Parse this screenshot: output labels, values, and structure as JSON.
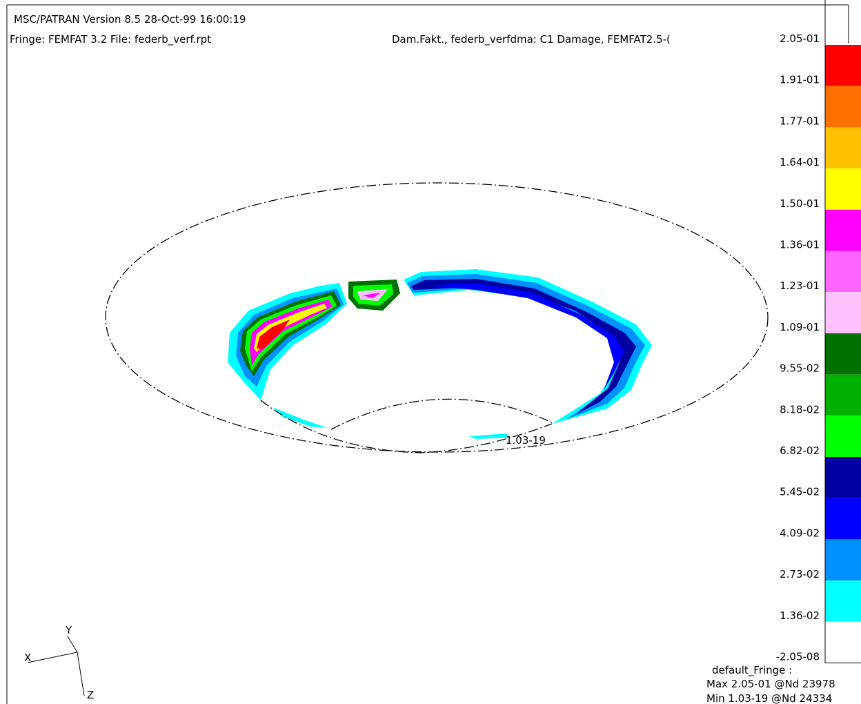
{
  "header": {
    "line1": "MSC/PATRAN Version 8.5 28-Oct-99 16:00:19",
    "line2": "Fringe: FEMFAT 3.2 File: federb_verf.rpt",
    "title": "Dam.Fakt., federb_verfdma: C1 Damage, FEMFAT2.5-("
  },
  "legend": {
    "labels": [
      "2.05-01",
      "1.91-01",
      "1.77-01",
      "1.64-01",
      "1.50-01",
      "1.36-01",
      "1.23-01",
      "1.09-01",
      "9.55-02",
      "8.18-02",
      "6.82-02",
      "5.45-02",
      "4.09-02",
      "2.73-02",
      "1.36-02",
      "-2.05-08"
    ],
    "colors": [
      "#ff0000",
      "#ff7000",
      "#ffc000",
      "#ffff00",
      "#ff00ff",
      "#ff66ff",
      "#ffc0ff",
      "#007000",
      "#00b000",
      "#00ff00",
      "#0000a0",
      "#0000ff",
      "#0090ff",
      "#00ffff",
      "#ffffff"
    ]
  },
  "footer": {
    "line1": "default_Fringe :",
    "line2": "Max 2.05-01 @Nd 23978",
    "line3": "Min 1.03-19 @Nd 24334"
  },
  "min_marker": "1.03-19",
  "axes": {
    "x": "X",
    "y": "Y",
    "z": "Z"
  }
}
